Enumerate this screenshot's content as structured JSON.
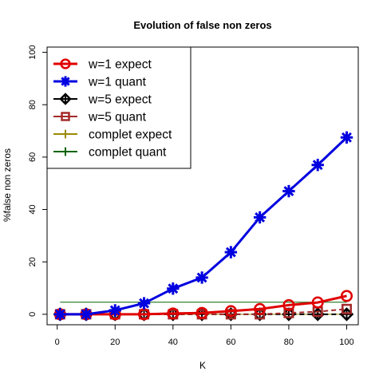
{
  "chart_data": {
    "type": "line",
    "title": "Evolution of false non zeros",
    "xlabel": "K",
    "ylabel": "%false non zeros",
    "xlim": [
      -3.5,
      104
    ],
    "ylim": [
      -4,
      102
    ],
    "x_ticks": [
      0,
      20,
      40,
      60,
      80,
      100
    ],
    "y_ticks": [
      0,
      20,
      40,
      60,
      80,
      100
    ],
    "x_tick_labels": [
      "0",
      "20",
      "40",
      "60",
      "80",
      "100"
    ],
    "y_tick_labels": [
      "0",
      "20",
      "40",
      "60",
      "80",
      "100"
    ],
    "legend_position": "top-left",
    "series": [
      {
        "name": "w=1 expect",
        "color": "#e00000",
        "marker": "circle-open",
        "line": "solid",
        "width": 3,
        "x": [
          1,
          10,
          20,
          30,
          40,
          50,
          60,
          70,
          80,
          90,
          100
        ],
        "y": [
          0,
          0,
          0,
          0,
          0.3,
          0.5,
          1.2,
          2.0,
          3.5,
          4.5,
          7.0
        ]
      },
      {
        "name": "w=1 quant",
        "color": "#0000e0",
        "marker": "asterisk",
        "line": "solid",
        "width": 3,
        "x": [
          1,
          10,
          20,
          30,
          40,
          50,
          60,
          70,
          80,
          90,
          100
        ],
        "y": [
          0,
          0,
          1.5,
          4.2,
          9.8,
          14.0,
          23.7,
          37.0,
          47.0,
          57.0,
          67.5
        ]
      },
      {
        "name": "w=5 expect",
        "color": "#000000",
        "marker": "diamond-plus",
        "line": "dashed",
        "width": 2,
        "x": [
          1,
          10,
          20,
          30,
          40,
          50,
          60,
          70,
          80,
          90,
          100
        ],
        "y": [
          0,
          0,
          0,
          0,
          0,
          0,
          0,
          0,
          0,
          0,
          0
        ]
      },
      {
        "name": "w=5 quant",
        "color": "#a52a2a",
        "marker": "square-open",
        "line": "dashed",
        "width": 2,
        "x": [
          1,
          10,
          20,
          30,
          40,
          50,
          60,
          70,
          80,
          90,
          100
        ],
        "y": [
          0,
          0,
          0,
          0,
          0,
          0,
          0,
          0,
          0.5,
          1.0,
          2.0
        ]
      },
      {
        "name": "complet expect",
        "color": "#9a8a00",
        "marker": "plus",
        "line": "solid",
        "width": 1,
        "x": [
          1,
          100
        ],
        "y": [
          0,
          0
        ]
      },
      {
        "name": "complet quant",
        "color": "#006400",
        "marker": "plus",
        "line": "solid",
        "width": 1,
        "x": [
          1,
          100
        ],
        "y": [
          4.6,
          4.6
        ]
      }
    ]
  }
}
